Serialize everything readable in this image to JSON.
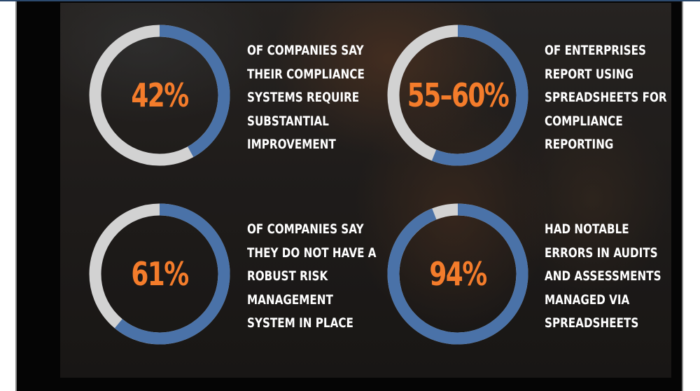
{
  "colors": {
    "ring_fill": "#4a72a8",
    "ring_track": "#d2d2d2",
    "percent_text": "#f47c2b",
    "description_text": "#ffffff"
  },
  "stats": [
    {
      "percent_label": "42%",
      "fill_fraction": 0.42,
      "lines": [
        "OF COMPANIES SAY",
        "THEIR COMPLIANCE",
        "SYSTEMS REQUIRE",
        "SUBSTANTIAL",
        "IMPROVEMENT"
      ]
    },
    {
      "percent_label": "55–60%",
      "fill_fraction": 0.56,
      "lines": [
        "OF ENTERPRISES",
        "REPORT USING",
        "SPREADSHEETS FOR",
        "COMPLIANCE",
        "REPORTING"
      ]
    },
    {
      "percent_label": "61%",
      "fill_fraction": 0.61,
      "lines": [
        "OF COMPANIES SAY",
        "THEY DO NOT HAVE A",
        "ROBUST RISK",
        "MANAGEMENT",
        "SYSTEM IN PLACE"
      ]
    },
    {
      "percent_label": "94%",
      "fill_fraction": 0.94,
      "lines": [
        "HAD NOTABLE",
        "ERRORS IN AUDITS",
        "AND ASSESSMENTS",
        "MANAGED VIA",
        "SPREADSHEETS"
      ]
    }
  ]
}
